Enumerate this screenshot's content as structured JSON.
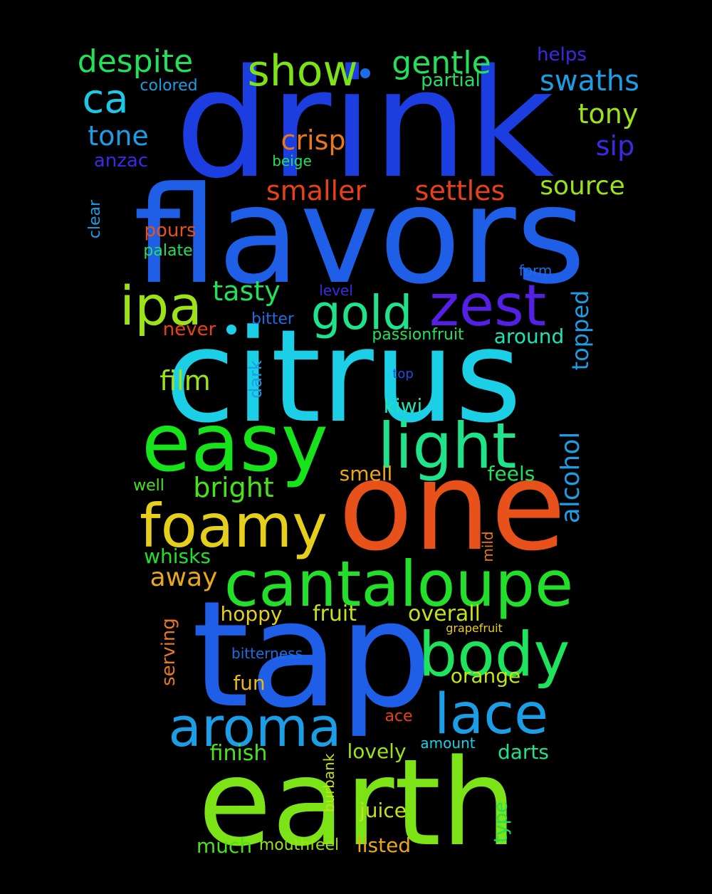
{
  "words": [
    {
      "text": "drink",
      "color": "#1c3ee0"
    },
    {
      "text": "flavors",
      "color": "#1f5ee6"
    },
    {
      "text": "citrus",
      "color": "#1bd0e6"
    },
    {
      "text": "one",
      "color": "#e8511a"
    },
    {
      "text": "tap",
      "color": "#1f5ee6"
    },
    {
      "text": "earth",
      "color": "#7be316"
    },
    {
      "text": "easy",
      "color": "#17e31a"
    },
    {
      "text": "cantaloupe",
      "color": "#22e02a"
    },
    {
      "text": "light",
      "color": "#1ee38a"
    },
    {
      "text": "foamy",
      "color": "#e6cf1a"
    },
    {
      "text": "body",
      "color": "#1ee35c"
    },
    {
      "text": "aroma",
      "color": "#1b9ee6"
    },
    {
      "text": "lace",
      "color": "#1b9ee6"
    },
    {
      "text": "zest",
      "color": "#5520e6"
    },
    {
      "text": "ipa",
      "color": "#9be316"
    },
    {
      "text": "gold",
      "color": "#1ee38a"
    },
    {
      "text": "show",
      "color": "#7be316"
    },
    {
      "text": "despite",
      "color": "#22e05a"
    },
    {
      "text": "gentle",
      "color": "#22e05a"
    },
    {
      "text": "swaths",
      "color": "#1b9ee6"
    },
    {
      "text": "ca",
      "color": "#1bc8e6"
    },
    {
      "text": "tony",
      "color": "#9be316"
    },
    {
      "text": "tone",
      "color": "#1b9ee6"
    },
    {
      "text": "crisp",
      "color": "#e8781a"
    },
    {
      "text": "sip",
      "color": "#3a2ae6"
    },
    {
      "text": "smaller",
      "color": "#e8411a"
    },
    {
      "text": "settles",
      "color": "#e8411a"
    },
    {
      "text": "source",
      "color": "#9be316"
    },
    {
      "text": "tasty",
      "color": "#22e05a"
    },
    {
      "text": "film",
      "color": "#9be316"
    },
    {
      "text": "bright",
      "color": "#4ae31a"
    },
    {
      "text": "alcohol",
      "color": "#1b9ee6"
    },
    {
      "text": "topped",
      "color": "#1b9ee6"
    },
    {
      "text": "around",
      "color": "#1ee3b8"
    },
    {
      "text": "away",
      "color": "#e8a81a"
    },
    {
      "text": "whisks",
      "color": "#22e02a"
    },
    {
      "text": "hoppy",
      "color": "#e6cf1a"
    },
    {
      "text": "fruit",
      "color": "#c2e31a"
    },
    {
      "text": "overall",
      "color": "#c2e31a"
    },
    {
      "text": "smell",
      "color": "#e8a81a"
    },
    {
      "text": "feels",
      "color": "#22e05a"
    },
    {
      "text": "kiwi",
      "color": "#1ee3b8"
    },
    {
      "text": "orange",
      "color": "#c2e31a"
    },
    {
      "text": "finish",
      "color": "#4ae31a"
    },
    {
      "text": "lovely",
      "color": "#9be316"
    },
    {
      "text": "darts",
      "color": "#1ee38a"
    },
    {
      "text": "juice",
      "color": "#c2e31a"
    },
    {
      "text": "listed",
      "color": "#e8a81a"
    },
    {
      "text": "much",
      "color": "#4ae31a"
    },
    {
      "text": "mouthfeel",
      "color": "#9be316"
    },
    {
      "text": "fun",
      "color": "#e8b81a"
    },
    {
      "text": "pours",
      "color": "#e8511a"
    },
    {
      "text": "palate",
      "color": "#22e05a"
    },
    {
      "text": "never",
      "color": "#e8411a"
    },
    {
      "text": "helps",
      "color": "#3a2ae6"
    },
    {
      "text": "colored",
      "color": "#1b9ee6"
    },
    {
      "text": "partial",
      "color": "#22e05a"
    },
    {
      "text": "anzac",
      "color": "#3a2ae6"
    },
    {
      "text": "beige",
      "color": "#22e05a"
    },
    {
      "text": "clear",
      "color": "#1b9ee6"
    },
    {
      "text": "form",
      "color": "#1b6ee6"
    },
    {
      "text": "level",
      "color": "#3a2ae6"
    },
    {
      "text": "bitter",
      "color": "#1b6ee6"
    },
    {
      "text": "passionfruit",
      "color": "#22e05a"
    },
    {
      "text": "dark",
      "color": "#1b9ee6"
    },
    {
      "text": "top",
      "color": "#1b4ee6"
    },
    {
      "text": "well",
      "color": "#4ae31a"
    },
    {
      "text": "mild",
      "color": "#e8781a"
    },
    {
      "text": "serving",
      "color": "#e8781a"
    },
    {
      "text": "bitterness",
      "color": "#1b6ee6"
    },
    {
      "text": "grapefruit",
      "color": "#e6cf1a"
    },
    {
      "text": "ace",
      "color": "#e8411a"
    },
    {
      "text": "amount",
      "color": "#1bd0e6"
    },
    {
      "text": "burbank",
      "color": "#c2e31a"
    },
    {
      "text": "type",
      "color": "#22e05a"
    }
  ]
}
